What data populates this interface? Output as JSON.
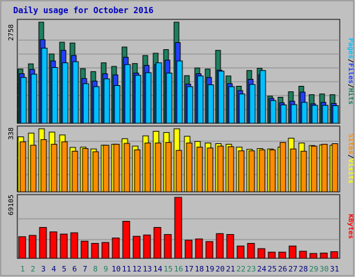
{
  "title": "Daily usage for October 2016",
  "colors": {
    "background": "#c0c0c0",
    "plot": "#bfbfbf",
    "title": "#0000c0",
    "hits": "#1e8060",
    "files": "#2040ff",
    "pages": "#00c0ff",
    "visits": "#ffff00",
    "sites": "#ff8c00",
    "kbytes": "#ff0000",
    "weekend_label": "#208060",
    "weekday_label": "#000080"
  },
  "chart_data": [
    {
      "type": "bar",
      "panel": "hits-files-pages",
      "ylabel_parts": [
        "Pages",
        "/",
        "Files",
        "/",
        "Hits"
      ],
      "ymax_label": "2758",
      "ylim": [
        0,
        2758
      ],
      "categories": [
        "1",
        "2",
        "3",
        "4",
        "5",
        "6",
        "7",
        "8",
        "9",
        "10",
        "11",
        "12",
        "13",
        "14",
        "15",
        "16",
        "17",
        "18",
        "19",
        "20",
        "21",
        "22",
        "23",
        "24",
        "25",
        "26",
        "27",
        "28",
        "29",
        "30",
        "31"
      ],
      "weekend_days": [
        "1",
        "2",
        "8",
        "9",
        "15",
        "16",
        "22",
        "23",
        "29",
        "30"
      ],
      "series": [
        {
          "name": "Hits",
          "values": [
            1480,
            1620,
            2758,
            1890,
            2210,
            2190,
            1490,
            1410,
            1650,
            1550,
            2080,
            1630,
            1850,
            1910,
            2010,
            2758,
            1300,
            1510,
            1480,
            1990,
            1290,
            1010,
            1440,
            1500,
            740,
            710,
            860,
            1010,
            780,
            800,
            780
          ]
        },
        {
          "name": "Files",
          "values": [
            1350,
            1470,
            2280,
            1700,
            1990,
            1850,
            1220,
            1150,
            1350,
            1320,
            1800,
            1370,
            1580,
            1600,
            1720,
            2200,
            1070,
            1350,
            1250,
            1450,
            1080,
            890,
            1200,
            1320,
            680,
            560,
            600,
            850,
            530,
            570,
            540
          ]
        },
        {
          "name": "Pages",
          "values": [
            1250,
            1340,
            2050,
            1520,
            1650,
            1680,
            1080,
            1000,
            1210,
            1030,
            1600,
            1310,
            1380,
            1650,
            1370,
            1700,
            1000,
            1290,
            1050,
            1420,
            1000,
            800,
            1060,
            1440,
            620,
            500,
            510,
            570,
            490,
            490,
            480
          ]
        }
      ]
    },
    {
      "type": "bar",
      "panel": "sites-visits",
      "ylabel_parts": [
        "Sites",
        "/",
        "Visits"
      ],
      "ymax_label": "338",
      "ylim": [
        0,
        338
      ],
      "categories": [
        "1",
        "2",
        "3",
        "4",
        "5",
        "6",
        "7",
        "8",
        "9",
        "10",
        "11",
        "12",
        "13",
        "14",
        "15",
        "16",
        "17",
        "18",
        "19",
        "20",
        "21",
        "22",
        "23",
        "24",
        "25",
        "26",
        "27",
        "28",
        "29",
        "30",
        "31"
      ],
      "series": [
        {
          "name": "Visits",
          "values": [
            295,
            315,
            338,
            320,
            305,
            238,
            240,
            230,
            250,
            255,
            285,
            245,
            300,
            325,
            318,
            338,
            298,
            270,
            262,
            258,
            255,
            240,
            228,
            232,
            230,
            240,
            288,
            262,
            248,
            252,
            250
          ]
        },
        {
          "name": "Sites",
          "values": [
            268,
            250,
            280,
            255,
            268,
            218,
            232,
            215,
            250,
            255,
            260,
            225,
            262,
            262,
            265,
            222,
            262,
            240,
            235,
            245,
            242,
            220,
            220,
            225,
            225,
            265,
            230,
            218,
            245,
            255,
            258
          ]
        }
      ]
    },
    {
      "type": "bar",
      "panel": "kbytes",
      "ylabel_parts": [
        "KBytes"
      ],
      "ymax_label": "69105",
      "ylim": [
        0,
        69105
      ],
      "categories": [
        "1",
        "2",
        "3",
        "4",
        "5",
        "6",
        "7",
        "8",
        "9",
        "10",
        "11",
        "12",
        "13",
        "14",
        "15",
        "16",
        "17",
        "18",
        "19",
        "20",
        "21",
        "22",
        "23",
        "24",
        "25",
        "26",
        "27",
        "28",
        "29",
        "30",
        "31"
      ],
      "series": [
        {
          "name": "KBytes",
          "values": [
            24500,
            26000,
            35000,
            30000,
            27500,
            29000,
            19500,
            17000,
            18000,
            23000,
            42000,
            25000,
            26500,
            35000,
            27000,
            69105,
            20500,
            22000,
            19000,
            28000,
            27000,
            14000,
            17000,
            11000,
            7000,
            7000,
            14000,
            8000,
            5500,
            6000,
            7500
          ]
        }
      ]
    }
  ]
}
